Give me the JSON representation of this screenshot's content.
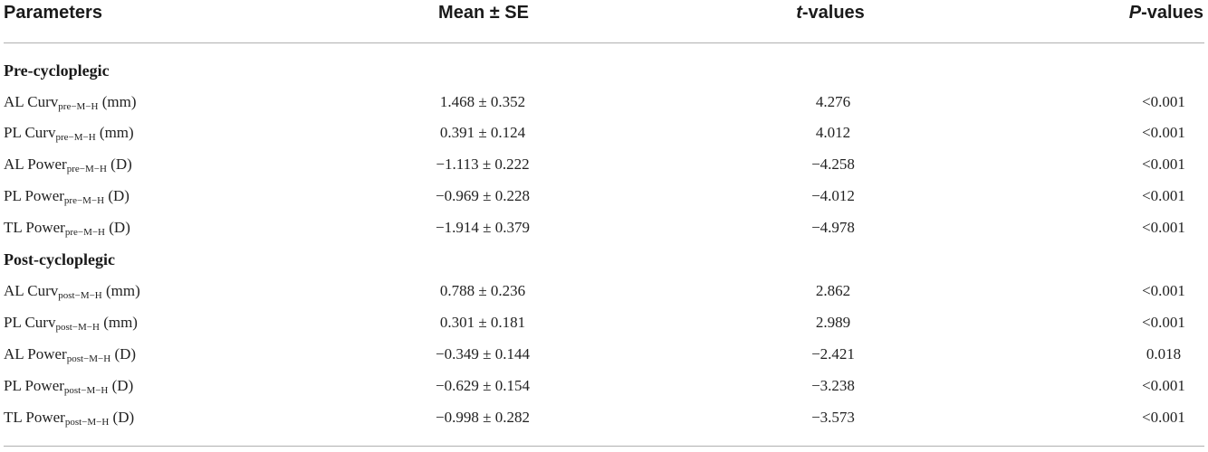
{
  "headers": {
    "parameters": "Parameters",
    "mean_se": "Mean ± SE",
    "t_values_italic": "t",
    "t_values_rest": "-values",
    "p_values_italic": "P",
    "p_values_rest": "-values"
  },
  "sections": {
    "pre": "Pre-cycloplegic",
    "post": "Post-cycloplegic"
  },
  "rows": [
    {
      "base": "AL Curv",
      "sub": "pre−M−H",
      "unit": " (mm)",
      "mean": "1.468 ± 0.352",
      "t": "4.276",
      "p": "<0.001"
    },
    {
      "base": "PL Curv",
      "sub": "pre−M−H",
      "unit": " (mm)",
      "mean": "0.391 ± 0.124",
      "t": "4.012",
      "p": "<0.001"
    },
    {
      "base": "AL Power",
      "sub": "pre−M−H",
      "unit": " (D)",
      "mean": "−1.113 ± 0.222",
      "t": "−4.258",
      "p": "<0.001"
    },
    {
      "base": "PL Power",
      "sub": "pre−M−H",
      "unit": " (D)",
      "mean": "−0.969 ± 0.228",
      "t": "−4.012",
      "p": "<0.001"
    },
    {
      "base": "TL Power",
      "sub": "pre−M−H",
      "unit": " (D)",
      "mean": "−1.914 ± 0.379",
      "t": "−4.978",
      "p": "<0.001"
    },
    {
      "base": "AL Curv",
      "sub": "post−M−H",
      "unit": " (mm)",
      "mean": "0.788 ± 0.236",
      "t": "2.862",
      "p": "<0.001"
    },
    {
      "base": "PL Curv",
      "sub": "post−M−H",
      "unit": " (mm)",
      "mean": "0.301 ± 0.181",
      "t": "2.989",
      "p": "<0.001"
    },
    {
      "base": "AL Power",
      "sub": "post−M−H",
      "unit": " (D)",
      "mean": "−0.349 ± 0.144",
      "t": "−2.421",
      "p": "0.018"
    },
    {
      "base": "PL Power",
      "sub": "post−M−H",
      "unit": " (D)",
      "mean": "−0.629 ± 0.154",
      "t": "−3.238",
      "p": "<0.001"
    },
    {
      "base": "TL Power",
      "sub": "post−M−H",
      "unit": " (D)",
      "mean": "−0.998 ± 0.282",
      "t": "−3.573",
      "p": "<0.001"
    }
  ]
}
